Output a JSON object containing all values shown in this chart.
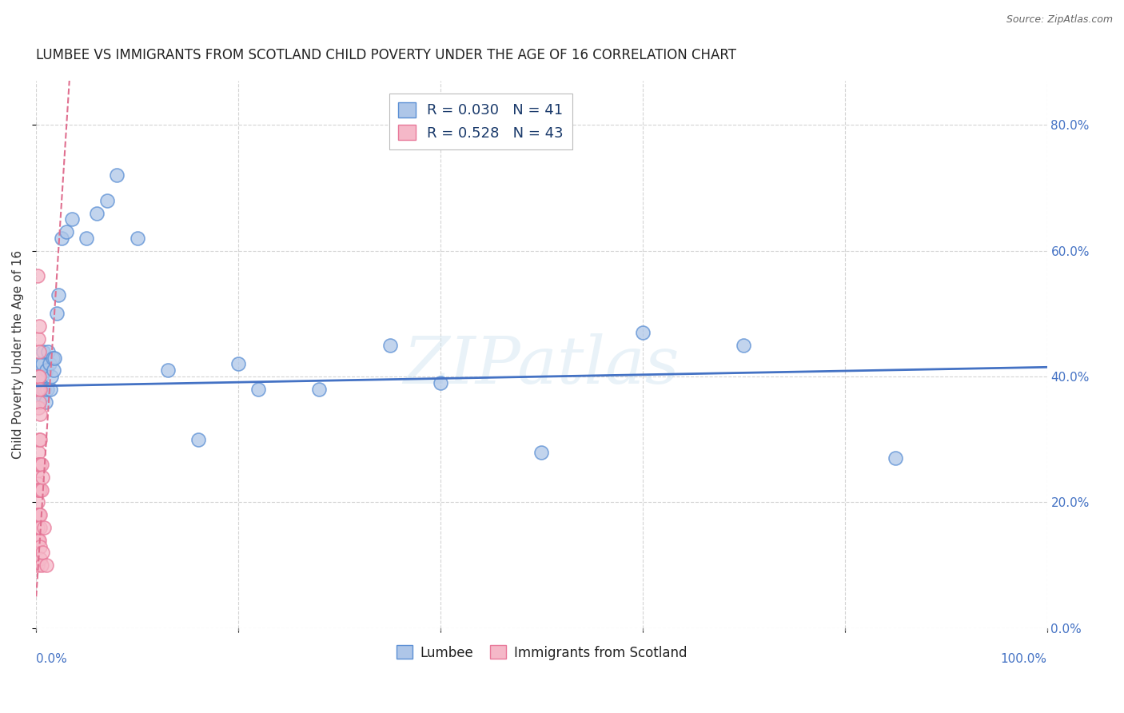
{
  "title": "LUMBEE VS IMMIGRANTS FROM SCOTLAND CHILD POVERTY UNDER THE AGE OF 16 CORRELATION CHART",
  "source": "Source: ZipAtlas.com",
  "ylabel": "Child Poverty Under the Age of 16",
  "watermark": "ZIPatlas",
  "lumbee_R": 0.03,
  "lumbee_N": 41,
  "scotland_R": 0.528,
  "scotland_N": 43,
  "lumbee_color": "#aec6e8",
  "scotland_color": "#f5b8c8",
  "lumbee_edge_color": "#5b8fd4",
  "scotland_edge_color": "#e8799a",
  "lumbee_line_color": "#4472c4",
  "scotland_line_color": "#e07090",
  "lumbee_x": [
    0.002,
    0.003,
    0.003,
    0.004,
    0.004,
    0.005,
    0.006,
    0.006,
    0.007,
    0.008,
    0.009,
    0.01,
    0.011,
    0.012,
    0.013,
    0.014,
    0.015,
    0.016,
    0.017,
    0.018,
    0.02,
    0.022,
    0.025,
    0.03,
    0.035,
    0.05,
    0.06,
    0.07,
    0.08,
    0.1,
    0.13,
    0.16,
    0.2,
    0.22,
    0.28,
    0.35,
    0.4,
    0.5,
    0.6,
    0.7,
    0.85
  ],
  "lumbee_y": [
    0.38,
    0.36,
    0.4,
    0.38,
    0.42,
    0.4,
    0.37,
    0.42,
    0.44,
    0.38,
    0.36,
    0.41,
    0.38,
    0.44,
    0.42,
    0.38,
    0.4,
    0.43,
    0.41,
    0.43,
    0.5,
    0.53,
    0.62,
    0.63,
    0.65,
    0.62,
    0.66,
    0.68,
    0.72,
    0.62,
    0.41,
    0.3,
    0.42,
    0.38,
    0.38,
    0.45,
    0.39,
    0.28,
    0.47,
    0.45,
    0.27
  ],
  "scotland_x": [
    0.001,
    0.001,
    0.001,
    0.001,
    0.001,
    0.001,
    0.001,
    0.001,
    0.001,
    0.002,
    0.002,
    0.002,
    0.002,
    0.002,
    0.002,
    0.002,
    0.002,
    0.002,
    0.003,
    0.003,
    0.003,
    0.003,
    0.003,
    0.003,
    0.003,
    0.003,
    0.003,
    0.004,
    0.004,
    0.004,
    0.004,
    0.004,
    0.004,
    0.004,
    0.004,
    0.004,
    0.005,
    0.005,
    0.005,
    0.006,
    0.006,
    0.008,
    0.01
  ],
  "scotland_y": [
    0.56,
    0.25,
    0.23,
    0.22,
    0.2,
    0.18,
    0.16,
    0.14,
    0.1,
    0.46,
    0.4,
    0.38,
    0.35,
    0.28,
    0.26,
    0.22,
    0.18,
    0.14,
    0.48,
    0.44,
    0.4,
    0.36,
    0.3,
    0.26,
    0.22,
    0.18,
    0.14,
    0.38,
    0.34,
    0.3,
    0.26,
    0.22,
    0.18,
    0.16,
    0.13,
    0.11,
    0.26,
    0.22,
    0.1,
    0.24,
    0.12,
    0.16,
    0.1
  ],
  "xlim": [
    0.0,
    1.0
  ],
  "ylim": [
    0.0,
    0.87
  ],
  "xticks": [
    0.0,
    0.2,
    0.4,
    0.6,
    0.8,
    1.0
  ],
  "yticks": [
    0.0,
    0.2,
    0.4,
    0.6,
    0.8
  ],
  "right_yticklabels": [
    "0.0%",
    "20.0%",
    "40.0%",
    "60.0%",
    "80.0%"
  ],
  "bottom_xtick_left": "0.0%",
  "bottom_xtick_right": "100.0%",
  "title_fontsize": 12,
  "label_fontsize": 11,
  "tick_fontsize": 11,
  "background_color": "#ffffff",
  "grid_color": "#d0d0d0"
}
